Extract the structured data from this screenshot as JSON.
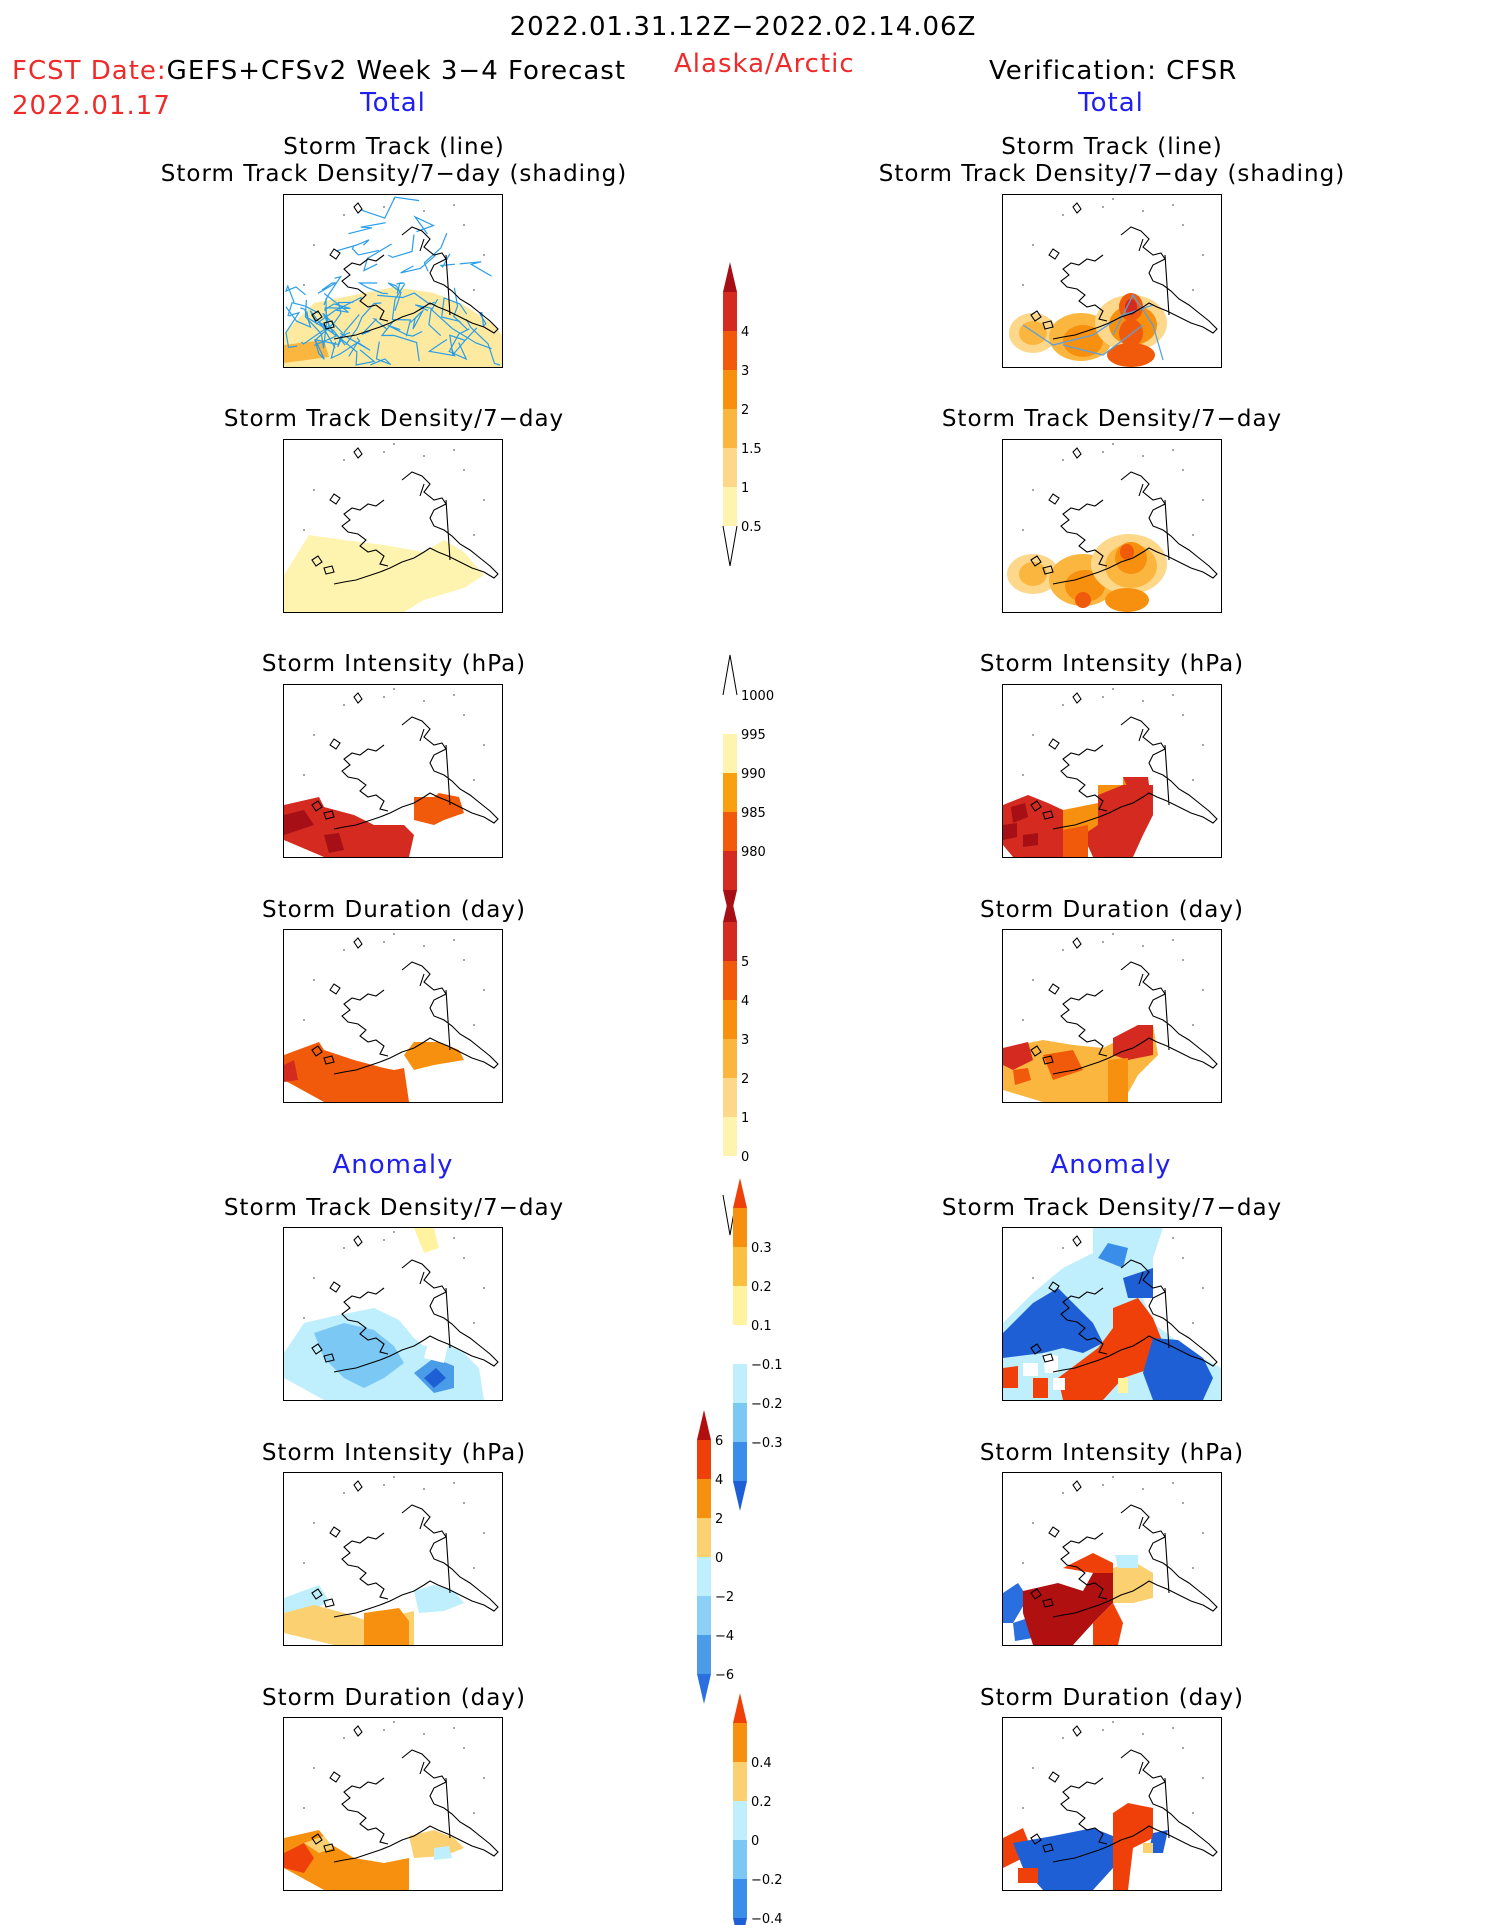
{
  "header": {
    "period": "2022.01.31.12Z−2022.02.14.06Z",
    "fcst_prefix": "FCST Date:",
    "fcst_model": "GEFS+CFSv2 Week 3−4 Forecast",
    "fcst_date": "2022.01.17",
    "region": "Alaska/Arctic",
    "verification": "Verification: CFSR",
    "left_section": "Total",
    "right_section": "Total"
  },
  "sections": {
    "anomaly_left": "Anomaly",
    "anomaly_right": "Anomaly"
  },
  "panel_titles": {
    "track_line": "Storm Track (line)",
    "track_shading": "Storm Track Density/7−day (shading)",
    "density": "Storm Track Density/7−day",
    "intensity": "Storm Intensity (hPa)",
    "duration": "Storm Duration (day)"
  },
  "colorbars": {
    "density_total": {
      "ticks": [
        "4",
        "3",
        "2",
        "1.5",
        "1",
        "0.5"
      ],
      "colors": [
        "#a50f15",
        "#d42a1f",
        "#f05a0a",
        "#f8900f",
        "#fbb640",
        "#fdd78a",
        "#fff3b0"
      ]
    },
    "intensity_total": {
      "ticks": [
        "1000",
        "995",
        "990",
        "985",
        "980"
      ],
      "colors": [
        "#ffffff",
        "#fff3b0",
        "#f8a00f",
        "#f05a0a",
        "#d42a1f",
        "#a50f15"
      ]
    },
    "duration_total": {
      "ticks": [
        "5",
        "4",
        "3",
        "2",
        "1",
        "0"
      ],
      "colors": [
        "#a50f15",
        "#d42a1f",
        "#f05a0a",
        "#f8900f",
        "#fbb640",
        "#fdd78a",
        "#fff3b0",
        "#ffffff"
      ]
    },
    "density_anom": {
      "ticks": [
        "0.3",
        "0.2",
        "0.1",
        "−0.1",
        "−0.2",
        "−0.3"
      ],
      "colors": [
        "#f0400a",
        "#f8900f",
        "#fbc040",
        "#fff3a0",
        "#ffffff",
        "#bfeffc",
        "#7cc8f5",
        "#3a8de8",
        "#1f5fd6"
      ]
    },
    "intensity_anom": {
      "ticks": [
        "6",
        "4",
        "2",
        "0",
        "−2",
        "−4",
        "−6"
      ],
      "colors": [
        "#b0100f",
        "#f0400a",
        "#f8900f",
        "#fbd070",
        "#bfeffc",
        "#8ccff7",
        "#4a9ce8",
        "#2a6fe0"
      ]
    },
    "duration_anom": {
      "ticks": [
        "0.4",
        "0.2",
        "0",
        "−0.2",
        "−0.4"
      ],
      "colors": [
        "#f0400a",
        "#f8900f",
        "#fbd070",
        "#bfeffc",
        "#7cc8f5",
        "#3a8de8",
        "#1f5fd6"
      ]
    }
  }
}
